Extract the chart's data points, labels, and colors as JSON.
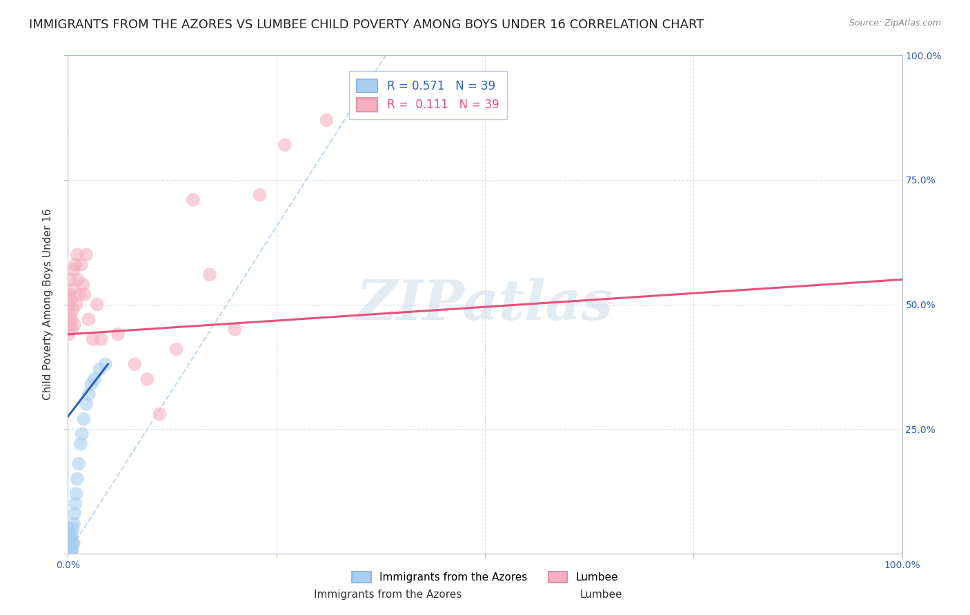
{
  "title": "IMMIGRANTS FROM THE AZORES VS LUMBEE CHILD POVERTY AMONG BOYS UNDER 16 CORRELATION CHART",
  "source": "Source: ZipAtlas.com",
  "ylabel": "Child Poverty Among Boys Under 16",
  "xlim": [
    0,
    1
  ],
  "ylim": [
    0,
    1
  ],
  "R_blue": 0.571,
  "N_blue": 39,
  "R_pink": 0.111,
  "N_pink": 39,
  "blue_color": "#a8cff0",
  "pink_color": "#f5afc0",
  "blue_line_color": "#3060c0",
  "pink_line_color": "#e8507a",
  "legend_label_blue": "Immigrants from the Azores",
  "legend_label_pink": "Lumbee",
  "watermark": "ZIPatlas",
  "title_fontsize": 13,
  "axis_label_fontsize": 11,
  "tick_fontsize": 10,
  "blue_x": [
    0.001,
    0.001,
    0.001,
    0.001,
    0.001,
    0.001,
    0.002,
    0.002,
    0.002,
    0.002,
    0.002,
    0.003,
    0.003,
    0.003,
    0.003,
    0.004,
    0.004,
    0.004,
    0.005,
    0.005,
    0.005,
    0.006,
    0.006,
    0.007,
    0.007,
    0.008,
    0.009,
    0.01,
    0.011,
    0.013,
    0.015,
    0.017,
    0.019,
    0.022,
    0.025,
    0.028,
    0.032,
    0.038,
    0.045
  ],
  "blue_y": [
    0.0,
    0.01,
    0.02,
    0.03,
    0.04,
    0.05,
    0.0,
    0.01,
    0.02,
    0.03,
    0.04,
    0.0,
    0.01,
    0.02,
    0.03,
    0.01,
    0.02,
    0.03,
    0.0,
    0.01,
    0.04,
    0.02,
    0.05,
    0.02,
    0.06,
    0.08,
    0.1,
    0.12,
    0.15,
    0.18,
    0.22,
    0.24,
    0.27,
    0.3,
    0.32,
    0.34,
    0.35,
    0.37,
    0.38
  ],
  "pink_x": [
    0.001,
    0.001,
    0.002,
    0.002,
    0.003,
    0.003,
    0.004,
    0.004,
    0.005,
    0.005,
    0.006,
    0.007,
    0.008,
    0.009,
    0.01,
    0.011,
    0.012,
    0.014,
    0.016,
    0.018,
    0.02,
    0.022,
    0.025,
    0.03,
    0.035,
    0.04,
    0.06,
    0.08,
    0.095,
    0.11,
    0.13,
    0.15,
    0.17,
    0.2,
    0.23,
    0.26,
    0.31,
    0.38,
    0.43
  ],
  "pink_y": [
    0.44,
    0.5,
    0.46,
    0.52,
    0.48,
    0.55,
    0.47,
    0.51,
    0.45,
    0.53,
    0.49,
    0.57,
    0.46,
    0.58,
    0.5,
    0.6,
    0.55,
    0.52,
    0.58,
    0.54,
    0.52,
    0.6,
    0.47,
    0.43,
    0.5,
    0.43,
    0.44,
    0.38,
    0.35,
    0.28,
    0.41,
    0.71,
    0.56,
    0.45,
    0.72,
    0.82,
    0.87,
    0.93,
    0.89
  ],
  "pink_line_x0": 0.0,
  "pink_line_y0": 0.44,
  "pink_line_x1": 1.0,
  "pink_line_y1": 0.55,
  "blue_line_x0": 0.0,
  "blue_line_y0": 0.275,
  "blue_line_x1": 0.048,
  "blue_line_y1": 0.38
}
